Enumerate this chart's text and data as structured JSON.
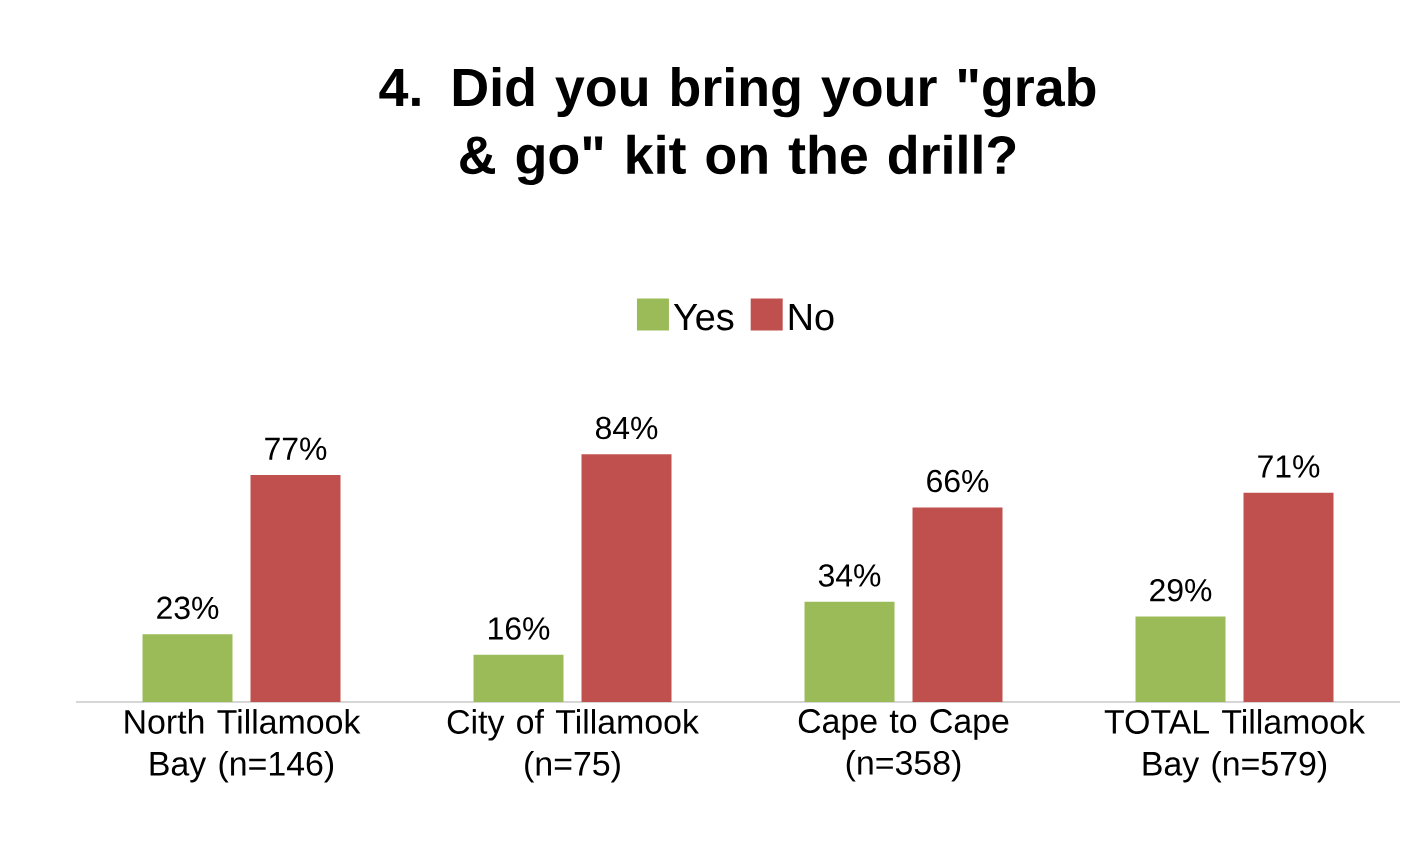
{
  "chart_data": {
    "type": "bar",
    "title": "4. Did you bring your \"grab & go\" kit on the drill?",
    "categories": [
      "North Tillamook Bay (n=146)",
      "City of Tillamook (n=75)",
      "Cape to Cape (n=358)",
      "TOTAL Tillamook Bay (n=579)"
    ],
    "series": [
      {
        "name": "Yes",
        "color": "#9bbb59",
        "values": [
          23,
          16,
          34,
          29
        ],
        "value_labels": [
          "23%",
          "16%",
          "34%",
          "29%"
        ]
      },
      {
        "name": "No",
        "color": "#c0504d",
        "values": [
          77,
          84,
          66,
          71
        ],
        "value_labels": [
          "77%",
          "84%",
          "66%",
          "71%"
        ]
      }
    ],
    "legend": "top"
  }
}
